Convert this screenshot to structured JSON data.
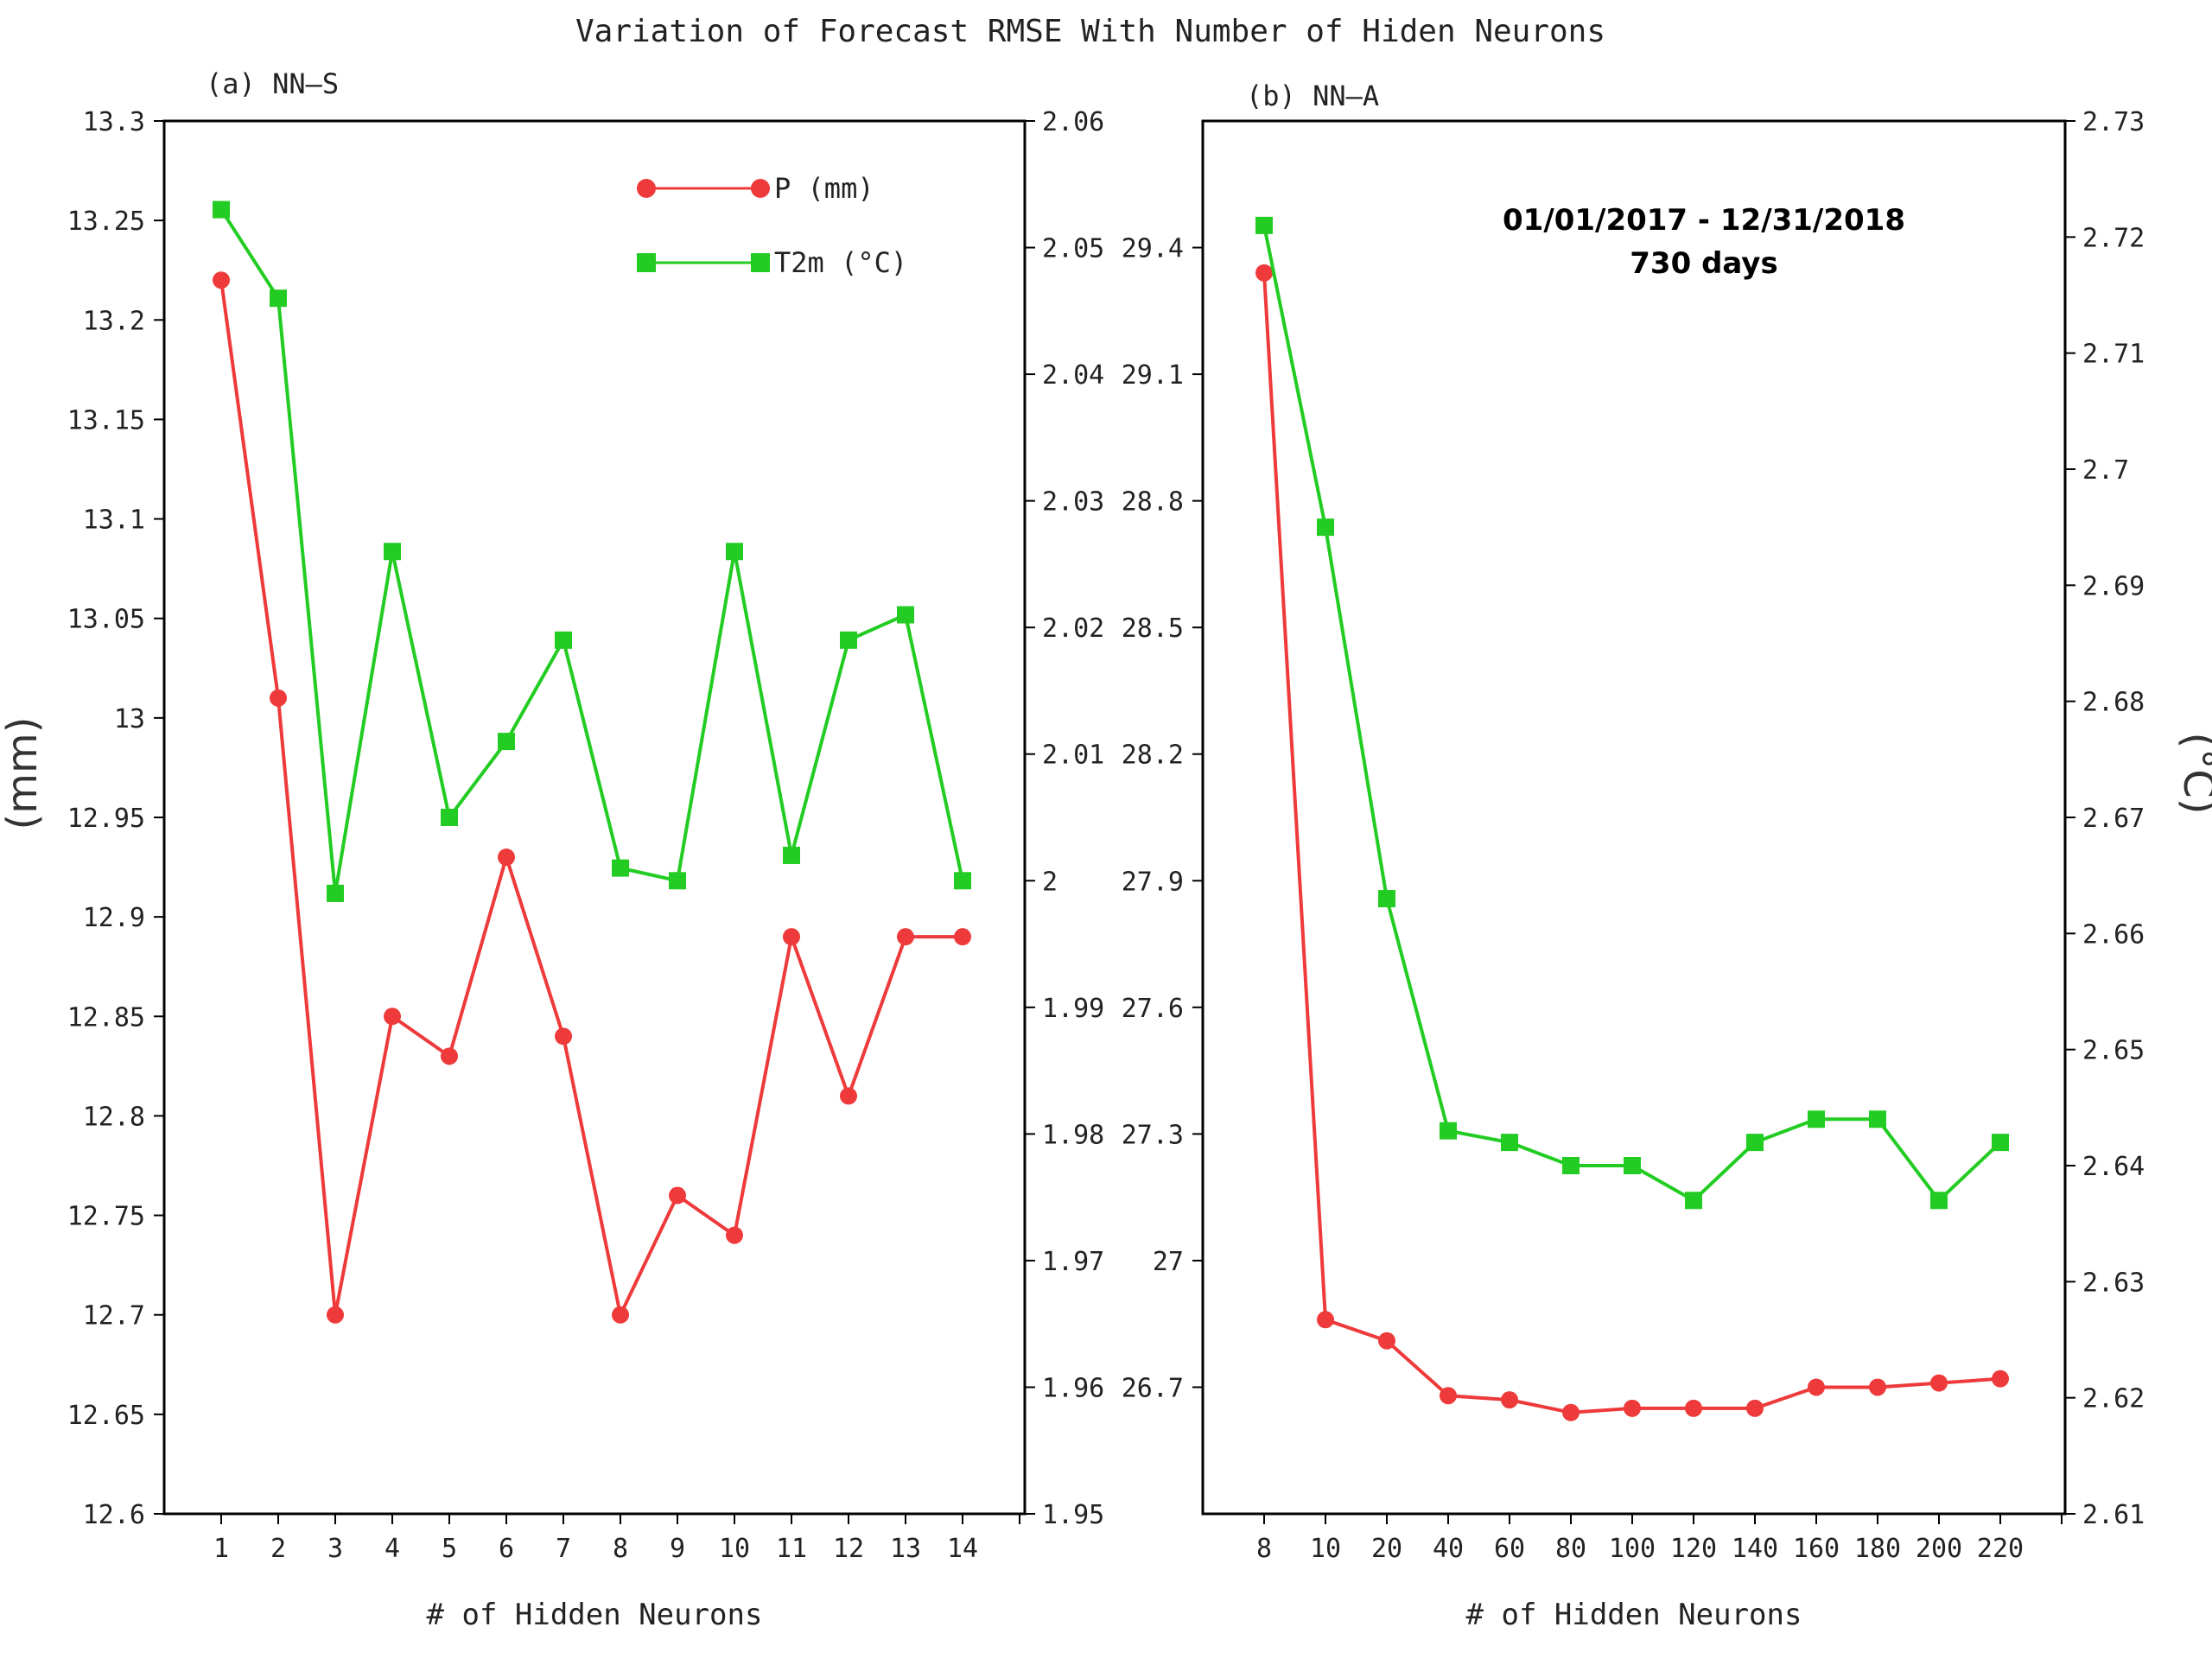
{
  "title": "Variation of Forecast RMSE With Number of Hiden Neurons",
  "y_axis_left_label": "(mm)",
  "y_axis_right_label": "(°C)",
  "legend": {
    "p_label": "P  (mm)",
    "t_label": "T2m  (°C)"
  },
  "annotation": {
    "line1": "01/01/2017 - 12/31/2018",
    "line2": "730 days"
  },
  "colors": {
    "p": "#ee3a3a",
    "t": "#22cc22",
    "axis": "#000000"
  },
  "chart_data": [
    {
      "type": "line",
      "panel_label": "(a) NN–S",
      "xlabel": "# of Hidden Neurons",
      "categories": [
        "1",
        "2",
        "3",
        "4",
        "5",
        "6",
        "7",
        "8",
        "9",
        "10",
        "11",
        "12",
        "13",
        "14"
      ],
      "ylim_left": [
        12.6,
        13.3
      ],
      "yticks_left": [
        "12.6",
        "12.65",
        "12.7",
        "12.75",
        "12.8",
        "12.85",
        "12.9",
        "12.95",
        "13",
        "13.05",
        "13.1",
        "13.15",
        "13.2",
        "13.25",
        "13.3"
      ],
      "ylim_right": [
        1.95,
        2.06
      ],
      "yticks_right": [
        "1.95",
        "1.96",
        "1.97",
        "1.98",
        "1.99",
        "2",
        "2.01",
        "2.02",
        "2.03",
        "2.04",
        "2.05",
        "2.06"
      ],
      "series": [
        {
          "name": "P  (mm)",
          "axis": "left",
          "marker": "circle",
          "values": [
            13.22,
            13.01,
            12.7,
            12.85,
            12.83,
            12.93,
            12.84,
            12.7,
            12.76,
            12.74,
            12.89,
            12.81,
            12.89,
            12.89
          ]
        },
        {
          "name": "T2m  (°C)",
          "axis": "right",
          "marker": "square",
          "values": [
            2.053,
            2.046,
            1.999,
            2.026,
            2.005,
            2.011,
            2.019,
            2.001,
            2.0,
            2.026,
            2.002,
            2.019,
            2.021,
            2.0
          ]
        }
      ]
    },
    {
      "type": "line",
      "panel_label": "(b) NN–A",
      "xlabel": "# of Hidden Neurons",
      "categories": [
        "8",
        "10",
        "20",
        "40",
        "60",
        "80",
        "100",
        "120",
        "140",
        "160",
        "180",
        "200",
        "220"
      ],
      "ylim_left": [
        26.4,
        29.7
      ],
      "yticks_left": [
        "26.7",
        "27",
        "27.3",
        "27.6",
        "27.9",
        "28.2",
        "28.5",
        "28.8",
        "29.1",
        "29.4"
      ],
      "ylim_right": [
        2.61,
        2.73
      ],
      "yticks_right": [
        "2.61",
        "2.62",
        "2.63",
        "2.64",
        "2.65",
        "2.66",
        "2.67",
        "2.68",
        "2.69",
        "2.7",
        "2.71",
        "2.72",
        "2.73"
      ],
      "series": [
        {
          "name": "P  (mm)",
          "axis": "left",
          "marker": "circle",
          "values": [
            29.34,
            26.86,
            26.81,
            26.68,
            26.67,
            26.64,
            26.65,
            26.65,
            26.65,
            26.7,
            26.7,
            26.71,
            26.72
          ]
        },
        {
          "name": "T2m  (°C)",
          "axis": "right",
          "marker": "square",
          "values": [
            2.721,
            2.695,
            2.663,
            2.643,
            2.642,
            2.64,
            2.64,
            2.637,
            2.642,
            2.644,
            2.644,
            2.637,
            2.642
          ]
        }
      ]
    }
  ]
}
